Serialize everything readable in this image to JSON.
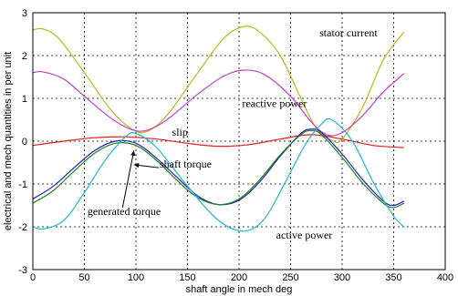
{
  "chart_data": {
    "type": "line",
    "title": "",
    "xlabel": "shaft angle in mech deg",
    "ylabel": "electrical and mech quantities in per unit",
    "xlim": [
      0,
      400
    ],
    "ylim": [
      -3,
      3
    ],
    "xticks": [
      0,
      50,
      100,
      150,
      200,
      250,
      300,
      350,
      400
    ],
    "yticks": [
      -3,
      -2,
      -1,
      0,
      1,
      2,
      3
    ],
    "grid": true,
    "legend": "none",
    "series": [
      {
        "name": "stator current",
        "color": "#b8b820",
        "x": [
          0,
          10,
          25,
          50,
          75,
          95,
          110,
          130,
          160,
          185,
          205,
          220,
          240,
          260,
          275,
          290,
          300,
          320,
          340,
          360
        ],
        "y": [
          2.6,
          2.62,
          2.4,
          1.6,
          0.75,
          0.3,
          0.22,
          0.6,
          1.6,
          2.4,
          2.68,
          2.55,
          2.0,
          1.0,
          0.3,
          0.02,
          0.05,
          0.8,
          1.9,
          2.55
        ]
      },
      {
        "name": "reactive power",
        "color": "#c040c0",
        "x": [
          0,
          10,
          30,
          50,
          75,
          95,
          110,
          130,
          160,
          185,
          205,
          225,
          250,
          270,
          285,
          300,
          320,
          340,
          360
        ],
        "y": [
          1.6,
          1.62,
          1.45,
          1.05,
          0.55,
          0.28,
          0.25,
          0.5,
          1.1,
          1.52,
          1.66,
          1.55,
          1.05,
          0.45,
          0.15,
          0.2,
          0.6,
          1.15,
          1.58
        ]
      },
      {
        "name": "slip",
        "color": "#e02020",
        "x": [
          0,
          30,
          60,
          90,
          120,
          150,
          180,
          210,
          240,
          270,
          300,
          330,
          360
        ],
        "y": [
          -0.1,
          0.0,
          0.08,
          0.1,
          0.05,
          -0.05,
          -0.12,
          -0.08,
          0.05,
          0.15,
          0.05,
          -0.1,
          -0.15
        ]
      },
      {
        "name": "shaft torque",
        "color": "#2020c0",
        "x": [
          0,
          20,
          40,
          60,
          80,
          100,
          120,
          140,
          160,
          180,
          200,
          220,
          240,
          260,
          270,
          280,
          300,
          320,
          340,
          350,
          360
        ],
        "y": [
          -1.35,
          -1.05,
          -0.62,
          -0.22,
          0.0,
          -0.05,
          -0.4,
          -0.85,
          -1.28,
          -1.48,
          -1.38,
          -0.95,
          -0.35,
          0.18,
          0.28,
          0.2,
          -0.3,
          -0.9,
          -1.4,
          -1.5,
          -1.4
        ]
      },
      {
        "name": "generated torque",
        "color": "#208020",
        "x": [
          0,
          20,
          40,
          60,
          80,
          100,
          120,
          140,
          160,
          180,
          200,
          220,
          240,
          260,
          270,
          280,
          300,
          320,
          340,
          350,
          360
        ],
        "y": [
          -1.45,
          -1.15,
          -0.7,
          -0.28,
          -0.05,
          -0.1,
          -0.45,
          -0.92,
          -1.32,
          -1.48,
          -1.35,
          -0.9,
          -0.32,
          0.15,
          0.25,
          0.15,
          -0.38,
          -0.98,
          -1.45,
          -1.55,
          -1.45
        ]
      },
      {
        "name": "active power",
        "color": "#20b8c8",
        "x": [
          0,
          10,
          30,
          50,
          70,
          90,
          100,
          120,
          150,
          180,
          205,
          225,
          245,
          265,
          280,
          290,
          310,
          330,
          350,
          360
        ],
        "y": [
          -2.0,
          -2.05,
          -1.85,
          -1.2,
          -0.45,
          0.1,
          0.18,
          -0.15,
          -1.05,
          -1.85,
          -2.1,
          -1.8,
          -0.95,
          -0.05,
          0.4,
          0.5,
          0.0,
          -0.95,
          -1.75,
          -2.0
        ]
      }
    ],
    "annotations": [
      {
        "text": "stator current",
        "x": 278,
        "y": 2.45
      },
      {
        "text": "reactive power",
        "x": 203,
        "y": 0.8
      },
      {
        "text": "slip",
        "x": 135,
        "y": 0.13
      },
      {
        "text": "shaft torque",
        "x": 123,
        "y": -0.62
      },
      {
        "text": "generated torque",
        "x": 53,
        "y": -1.72
      },
      {
        "text": "active power",
        "x": 236,
        "y": -2.28
      }
    ]
  }
}
